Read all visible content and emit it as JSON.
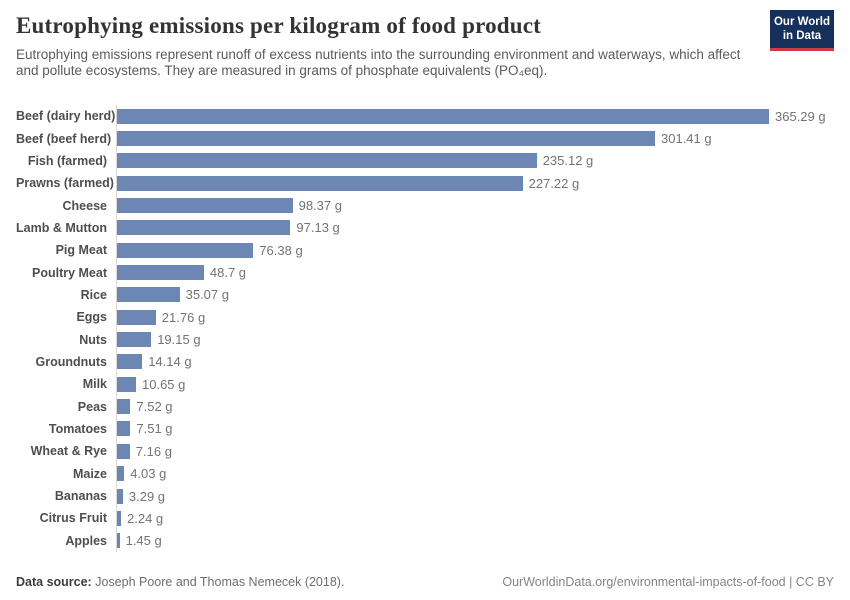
{
  "header": {
    "title": "Eutrophying emissions per kilogram of food product",
    "subtitle_line1": "Eutrophying emissions represent runoff of excess nutrients into the surrounding environment and waterways,",
    "subtitle_line2": "which affect and pollute ecosystems. They are measured in grams of phosphate equivalents (PO₄eq).",
    "logo": {
      "line1": "Our World",
      "line2": "in Data",
      "bg_color": "#14305b",
      "accent_color": "#cf3b42"
    }
  },
  "chart_data": {
    "type": "bar",
    "orientation": "horizontal",
    "title": "Eutrophying emissions per kilogram of food product",
    "unit": "g",
    "bar_color": "#6c87b4",
    "xlim": [
      0,
      402
    ],
    "grid": false,
    "legend": "none",
    "categories": [
      "Beef (dairy herd)",
      "Beef (beef herd)",
      "Fish (farmed)",
      "Prawns (farmed)",
      "Cheese",
      "Lamb & Mutton",
      "Pig Meat",
      "Poultry Meat",
      "Rice",
      "Eggs",
      "Nuts",
      "Groundnuts",
      "Milk",
      "Peas",
      "Tomatoes",
      "Wheat & Rye",
      "Maize",
      "Bananas",
      "Citrus Fruit",
      "Apples"
    ],
    "values": [
      365.29,
      301.41,
      235.12,
      227.22,
      98.37,
      97.13,
      76.38,
      48.7,
      35.07,
      21.76,
      19.15,
      14.14,
      10.65,
      7.52,
      7.51,
      7.16,
      4.03,
      3.29,
      2.24,
      1.45
    ],
    "value_labels": [
      "365.29 g",
      "301.41 g",
      "235.12 g",
      "227.22 g",
      "98.37 g",
      "97.13 g",
      "76.38 g",
      "48.7 g",
      "35.07 g",
      "21.76 g",
      "19.15 g",
      "14.14 g",
      "10.65 g",
      "7.52 g",
      "7.51 g",
      "7.16 g",
      "4.03 g",
      "3.29 g",
      "2.24 g",
      "1.45 g"
    ]
  },
  "footer": {
    "source_label": "Data source:",
    "source_text": " Joseph Poore and Thomas Nemecek (2018).",
    "link_text": "OurWorldinData.org/environmental-impacts-of-food | CC BY"
  }
}
